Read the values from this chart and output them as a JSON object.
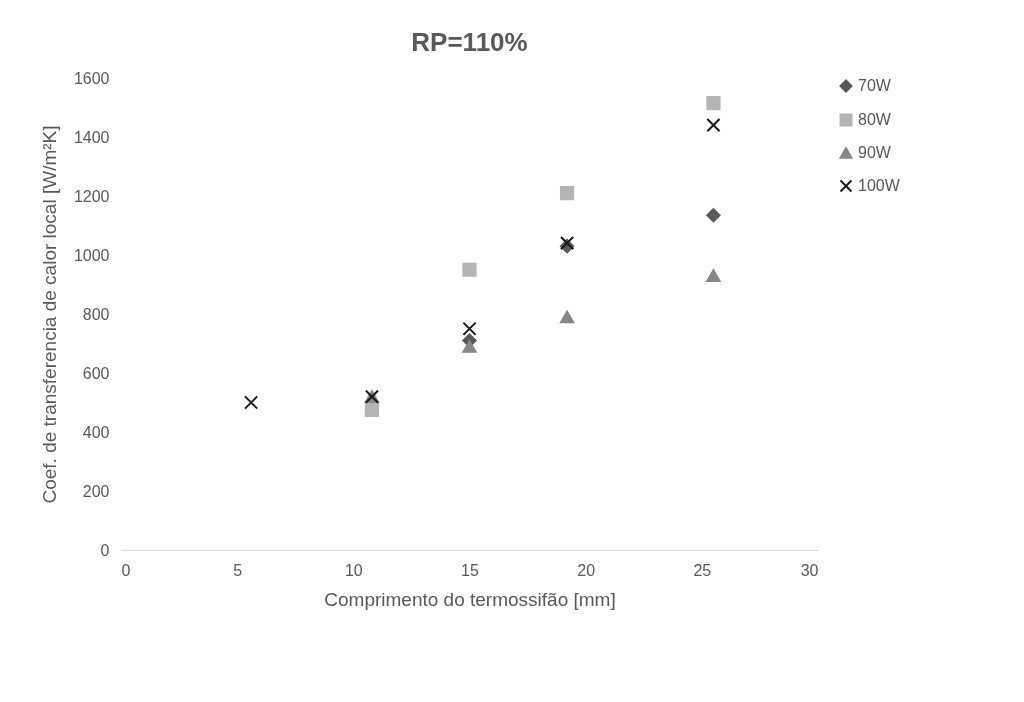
{
  "chart_data": {
    "type": "scatter",
    "title": "RP=110%",
    "xlabel": "Comprimento do termossifão [mm]",
    "ylabel": "Coef. de transferencia de calor local [W/m²K]",
    "x": [
      10.8,
      15,
      19.2,
      25.5
    ],
    "series": [
      {
        "name": "70W",
        "color": "#595959",
        "marker": "diamond",
        "values": [
          null,
          710,
          1030,
          1135
        ]
      },
      {
        "name": "80W",
        "color": "#b4b4b4",
        "marker": "square",
        "values": [
          475,
          950,
          1210,
          1515
        ]
      },
      {
        "name": "90W",
        "color": "#878787",
        "marker": "triangle",
        "values": [
          520,
          690,
          790,
          930
        ]
      },
      {
        "name": "100W",
        "color": "#1a1a1a",
        "marker": "cross",
        "x": [
          5.6,
          10.8,
          15,
          19.2,
          25.5
        ],
        "values": [
          500,
          520,
          750,
          1040,
          1440
        ]
      }
    ],
    "xlim": [
      0,
      30
    ],
    "xticks": [
      0,
      5,
      10,
      15,
      20,
      25,
      30
    ],
    "ylim": [
      0,
      1600
    ],
    "yticks": [
      0,
      200,
      400,
      600,
      800,
      1000,
      1200,
      1400,
      1600
    ],
    "grid": false,
    "legend": "top right"
  }
}
